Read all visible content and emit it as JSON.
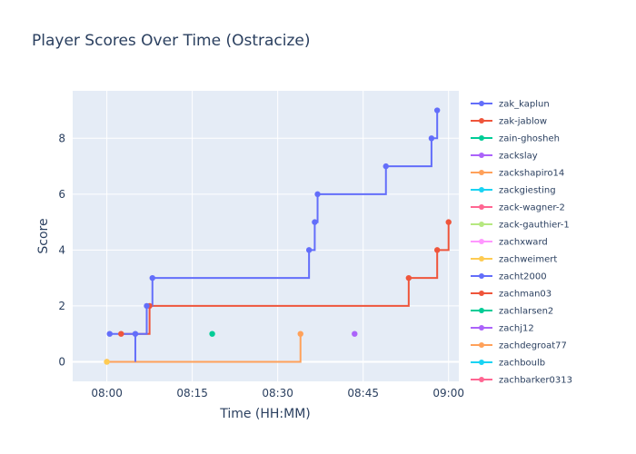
{
  "chart_data": {
    "type": "line",
    "line_shape": "step",
    "title": "Player Scores Over Time (Ostracize)",
    "xlabel": "Time (HH:MM)",
    "ylabel": "Score",
    "xlim": [
      "07:54",
      "09:01.8"
    ],
    "ylim": [
      -0.7,
      9.7
    ],
    "xticks": [
      "08:00",
      "08:15",
      "08:30",
      "08:45",
      "09:00"
    ],
    "yticks": [
      0,
      2,
      4,
      6,
      8
    ],
    "grid": true,
    "legend_position": "right",
    "background": "#e5ecf6",
    "series": [
      {
        "name": "zak_kaplun",
        "color": "#636efa",
        "points": [
          [
            "08:00.5",
            1
          ],
          [
            "08:05",
            1
          ],
          [
            "08:05",
            0
          ],
          [
            "08:05",
            1
          ],
          [
            "08:07",
            2
          ],
          [
            "08:08",
            2
          ],
          [
            "08:08",
            3
          ],
          [
            "08:35.5",
            4
          ],
          [
            "08:36.5",
            5
          ],
          [
            "08:37",
            6
          ],
          [
            "08:49",
            7
          ],
          [
            "08:57",
            8
          ],
          [
            "08:57",
            8
          ],
          [
            "08:58",
            9
          ]
        ],
        "display_points": [
          [
            "08:00.5",
            1
          ],
          [
            "08:05",
            1
          ],
          [
            "08:07",
            2
          ],
          [
            "08:08",
            3
          ],
          [
            "08:35.5",
            4
          ],
          [
            "08:36.5",
            5
          ],
          [
            "08:37",
            6
          ],
          [
            "08:49",
            7
          ],
          [
            "08:57",
            8
          ],
          [
            "08:58",
            9
          ]
        ]
      },
      {
        "name": "zak-jablow",
        "color": "#ef553b",
        "display_points": [
          [
            "08:02.5",
            1
          ],
          [
            "08:07.5",
            2
          ],
          [
            "08:53",
            3
          ],
          [
            "08:58",
            4
          ],
          [
            "09:00",
            5
          ]
        ]
      },
      {
        "name": "zain-ghosheh",
        "color": "#00cc96",
        "display_points": [
          [
            "08:18.5",
            1
          ]
        ]
      },
      {
        "name": "zackslay",
        "color": "#ab63fa",
        "display_points": [
          [
            "08:43.5",
            1
          ]
        ]
      },
      {
        "name": "zackshapiro14",
        "color": "#ffa15a",
        "display_points": [
          [
            "08:00",
            0
          ],
          [
            "08:34",
            1
          ]
        ]
      },
      {
        "name": "zackgiesting",
        "color": "#19d3f3",
        "display_points": []
      },
      {
        "name": "zack-wagner-2",
        "color": "#ff6692",
        "display_points": []
      },
      {
        "name": "zack-gauthier-1",
        "color": "#b6e880",
        "display_points": []
      },
      {
        "name": "zachxward",
        "color": "#ff97ff",
        "display_points": []
      },
      {
        "name": "zachweimert",
        "color": "#fecb52",
        "display_points": [
          [
            "08:00",
            0
          ]
        ]
      },
      {
        "name": "zacht2000",
        "color": "#636efa",
        "display_points": []
      },
      {
        "name": "zachman03",
        "color": "#ef553b",
        "display_points": []
      },
      {
        "name": "zachlarsen2",
        "color": "#00cc96",
        "display_points": []
      },
      {
        "name": "zachj12",
        "color": "#ab63fa",
        "display_points": []
      },
      {
        "name": "zachdegroat77",
        "color": "#ffa15a",
        "display_points": []
      },
      {
        "name": "zachboulb",
        "color": "#19d3f3",
        "display_points": []
      },
      {
        "name": "zachbarker0313",
        "color": "#ff6692",
        "display_points": []
      }
    ]
  }
}
